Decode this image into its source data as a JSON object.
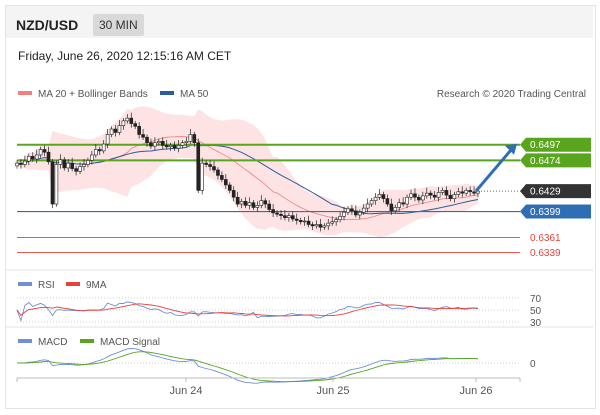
{
  "header": {
    "symbol": "NZD/USD",
    "timeframe": "30 MIN"
  },
  "datetime": "Friday, June 26, 2020 12:15:16 AM CET",
  "legend": {
    "bollinger": "MA 20 + Bollinger Bands",
    "ma50": "MA 50",
    "credit": "Research © 2020 Trading Central"
  },
  "colors": {
    "bull_levels": "#5aa51e",
    "price_line": "#2f6eb5",
    "support_red": "#e8403a",
    "bollinger": "#f08080",
    "ma50": "#2b5c9b",
    "rsi": "#6f8fd8",
    "macd": "#6f8fd8",
    "macd_signal": "#5aa51e",
    "current_label": "#333333"
  },
  "chart_data": [
    {
      "type": "line",
      "name": "price-panel",
      "title": "NZD/USD",
      "y_range": [
        0.6325,
        0.6545
      ],
      "x_ticks": [
        "Jun 24",
        "Jun 25",
        "Jun 26"
      ],
      "levels": [
        {
          "value": 0.6497,
          "label": "0.6497",
          "kind": "resistance"
        },
        {
          "value": 0.6474,
          "label": "0.6474",
          "kind": "resistance"
        },
        {
          "value": 0.6429,
          "label": "0.6429",
          "kind": "current"
        },
        {
          "value": 0.6399,
          "label": "0.6399",
          "kind": "pivot"
        },
        {
          "value": 0.6361,
          "label": "0.6361",
          "kind": "support"
        },
        {
          "value": 0.6339,
          "label": "0.6339",
          "kind": "support"
        }
      ],
      "close": [
        0.647,
        0.6468,
        0.6473,
        0.648,
        0.6476,
        0.6482,
        0.649,
        0.6486,
        0.6472,
        0.641,
        0.6468,
        0.6475,
        0.6463,
        0.647,
        0.6462,
        0.6458,
        0.6465,
        0.6468,
        0.6474,
        0.6482,
        0.649,
        0.6488,
        0.6498,
        0.6512,
        0.652,
        0.6515,
        0.6525,
        0.6532,
        0.6536,
        0.6528,
        0.6524,
        0.6512,
        0.6508,
        0.65,
        0.6495,
        0.65,
        0.6502,
        0.6496,
        0.6494,
        0.6496,
        0.6492,
        0.6496,
        0.65,
        0.6502,
        0.6512,
        0.65,
        0.643,
        0.647,
        0.6468,
        0.6465,
        0.646,
        0.6452,
        0.6446,
        0.6438,
        0.643,
        0.642,
        0.641,
        0.6414,
        0.6408,
        0.6412,
        0.6405,
        0.6408,
        0.6415,
        0.641,
        0.6402,
        0.6397,
        0.6395,
        0.6393,
        0.639,
        0.6393,
        0.6388,
        0.6386,
        0.6384,
        0.6385,
        0.638,
        0.6378,
        0.638,
        0.6376,
        0.6378,
        0.6382,
        0.6384,
        0.6387,
        0.6392,
        0.6398,
        0.6403,
        0.64,
        0.6394,
        0.6398,
        0.6404,
        0.641,
        0.6415,
        0.642,
        0.6424,
        0.6418,
        0.641,
        0.64,
        0.6405,
        0.6412,
        0.641,
        0.642,
        0.6425,
        0.642,
        0.6416,
        0.6422,
        0.6426,
        0.6423,
        0.642,
        0.6427,
        0.643,
        0.6423,
        0.6418,
        0.6424,
        0.6428,
        0.6426,
        0.643,
        0.6428,
        0.6426,
        0.6429
      ],
      "forecast_arrow": {
        "from": 0.6429,
        "to": 0.6497
      }
    },
    {
      "type": "line",
      "name": "rsi-panel",
      "levels": [
        70,
        50,
        30
      ],
      "level_labels": [
        "70",
        "50",
        "30"
      ],
      "series": [
        {
          "name": "RSI"
        },
        {
          "name": "9MA"
        }
      ]
    },
    {
      "type": "line",
      "name": "macd-panel",
      "levels": [
        0
      ],
      "level_labels": [
        "0"
      ],
      "series": [
        {
          "name": "MACD"
        },
        {
          "name": "MACD Signal"
        }
      ]
    }
  ]
}
